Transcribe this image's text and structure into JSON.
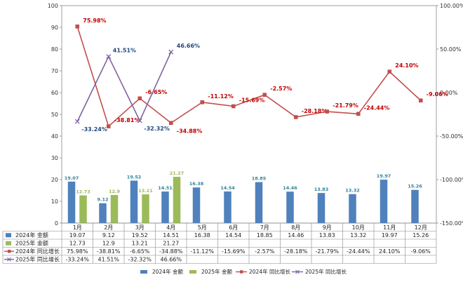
{
  "chart_data": {
    "type": "bar",
    "categories": [
      "1月",
      "2月",
      "3月",
      "4月",
      "5月",
      "6月",
      "7月",
      "8月",
      "9月",
      "10月",
      "11月",
      "12月"
    ],
    "series": [
      {
        "name": "2024年 金额",
        "kind": "bar",
        "axis": "left",
        "color": "#4f81bd",
        "values": [
          19.07,
          9.12,
          19.52,
          14.51,
          16.38,
          14.54,
          18.85,
          14.46,
          13.83,
          13.32,
          19.97,
          15.26
        ],
        "labels": [
          "19.07",
          "9.12",
          "19.52",
          "14.51",
          "16.38",
          "14.54",
          "18.85",
          "14.46",
          "13.83",
          "13.32",
          "19.97",
          "15.26"
        ]
      },
      {
        "name": "2025年 金额",
        "kind": "bar",
        "axis": "left",
        "color": "#9bbb59",
        "values": [
          12.73,
          12.9,
          13.21,
          21.27,
          null,
          null,
          null,
          null,
          null,
          null,
          null,
          null
        ],
        "labels": [
          "12.73",
          "12.9",
          "13.21",
          "21.27",
          "",
          "",
          "",
          "",
          "",
          "",
          "",
          ""
        ]
      },
      {
        "name": "2024年 同比增长",
        "kind": "line",
        "axis": "right",
        "color": "#c0504d",
        "marker": "square",
        "values": [
          75.98,
          -38.81,
          -6.65,
          -34.88,
          -11.12,
          -15.69,
          -2.57,
          -28.18,
          -21.79,
          -24.44,
          24.1,
          -9.06
        ],
        "labels": [
          "75.98%",
          "-38.81%",
          "-6.65%",
          "-34.88%",
          "-11.12%",
          "-15.69%",
          "-2.57%",
          "-28.18%",
          "-21.79%",
          "-24.44%",
          "24.10%",
          "-9.06%"
        ]
      },
      {
        "name": "2025年 同比增长",
        "kind": "line",
        "axis": "right",
        "color": "#8064a2",
        "marker": "x",
        "values": [
          -33.24,
          41.51,
          -32.32,
          46.66,
          null,
          null,
          null,
          null,
          null,
          null,
          null,
          null
        ],
        "labels": [
          "-33.24%",
          "41.51%",
          "-32.32%",
          "46.66%",
          "",
          "",
          "",
          "",
          "",
          "",
          "",
          ""
        ]
      }
    ],
    "y_left": {
      "min": 0,
      "max": 100,
      "step": 10,
      "tick_labels": [
        "0",
        "10",
        "20",
        "30",
        "40",
        "50",
        "60",
        "70",
        "80",
        "90",
        "100"
      ]
    },
    "y_right": {
      "min": -150,
      "max": 100,
      "step": 50,
      "tick_labels": [
        "-150.00%",
        "-100.00%",
        "-50.00%",
        "0.00%",
        "50.00%",
        "100.00%"
      ]
    },
    "grid": false,
    "legend_position": "bottom",
    "data_table": true
  }
}
